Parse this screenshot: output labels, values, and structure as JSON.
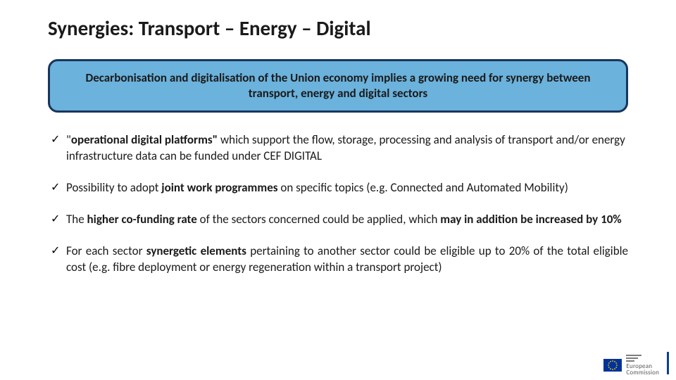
{
  "colors": {
    "text": "#1a1a1a",
    "banner_bg": "#6bb2dc",
    "banner_border": "#17365d",
    "eu_blue": "#003399",
    "eu_gold": "#ffcc00",
    "accent_bar": "#0b3e8f",
    "logo_gray": "#7d7d7d"
  },
  "title": "Synergies: Transport – Energy – Digital",
  "banner": "Decarbonisation and digitalisation of the Union economy implies a growing need for synergy between transport, energy and digital sectors",
  "bullets": [
    {
      "check": "✓",
      "segments": [
        {
          "t": "\"",
          "bold": false
        },
        {
          "t": "operational digital platforms\"",
          "bold": true
        },
        {
          "t": " which support the flow, storage, processing and analysis of transport and/or energy infrastructure data can be funded under CEF DIGITAL",
          "bold": false
        }
      ],
      "justify": false
    },
    {
      "check": "✓",
      "segments": [
        {
          "t": "Possibility to adopt ",
          "bold": false
        },
        {
          "t": "joint work programmes",
          "bold": true
        },
        {
          "t": " on specific topics (e.g. Connected and Automated Mobility)",
          "bold": false
        }
      ],
      "justify": false
    },
    {
      "check": "✓",
      "segments": [
        {
          "t": "The ",
          "bold": false
        },
        {
          "t": "higher co-funding rate",
          "bold": true
        },
        {
          "t": " of the sectors concerned could be applied, which ",
          "bold": false
        },
        {
          "t": "may in addition be increased by 10%",
          "bold": true
        }
      ],
      "justify": false
    },
    {
      "check": "✓",
      "segments": [
        {
          "t": "For each sector ",
          "bold": false
        },
        {
          "t": "synergetic elements",
          "bold": true
        },
        {
          "t": " pertaining to another sector could be eligible up to 20% of the total eligible cost (e.g. fibre deployment or energy regeneration within a transport project)",
          "bold": false
        }
      ],
      "justify": true
    }
  ],
  "logo": {
    "line1": "European",
    "line2": "Commission"
  }
}
